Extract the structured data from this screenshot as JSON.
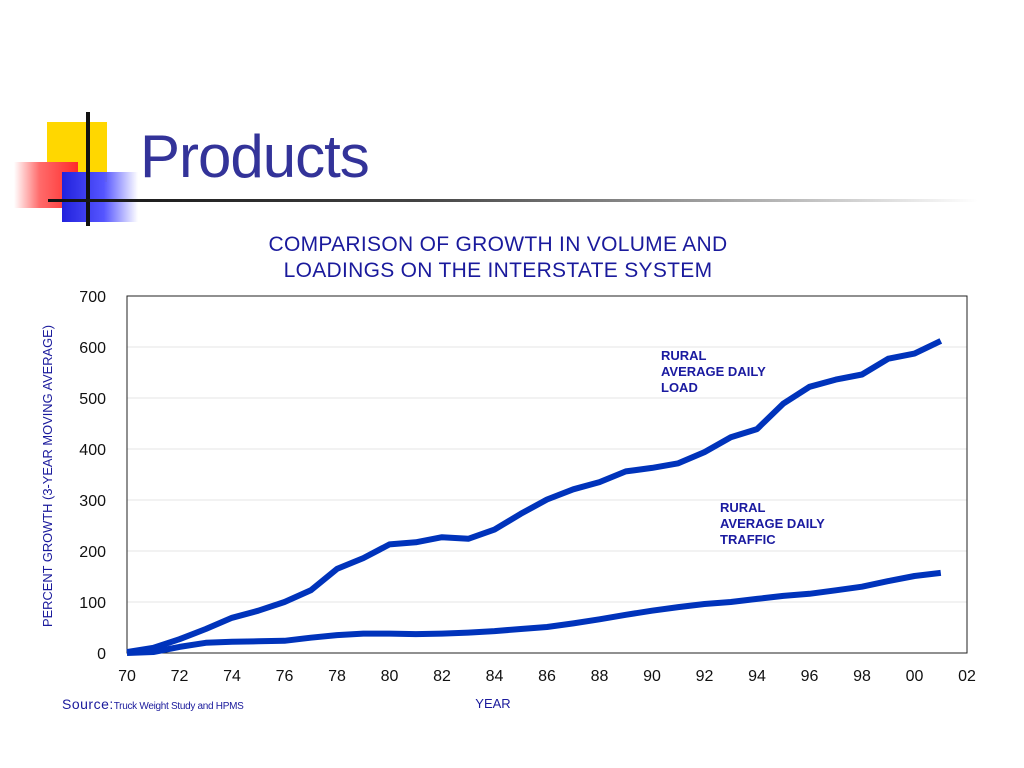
{
  "slide": {
    "title": "Products"
  },
  "source": {
    "label": "Source:",
    "text": "Truck Weight Study and HPMS"
  },
  "colors": {
    "line": "#0033bb",
    "title": "#333399",
    "chart_text": "#1a1a9c"
  },
  "chart_data": {
    "type": "line",
    "title_lines": [
      "COMPARISON OF GROWTH IN VOLUME AND",
      "LOADINGS ON THE INTERSTATE SYSTEM"
    ],
    "xlabel": "YEAR",
    "ylabel": "PERCENT GROWTH (3-YEAR MOVING AVERAGE)",
    "xlim": [
      1970,
      2002
    ],
    "ylim": [
      0,
      700
    ],
    "x_ticks": [
      1970,
      1972,
      1974,
      1976,
      1978,
      1980,
      1982,
      1984,
      1986,
      1988,
      1990,
      1992,
      1994,
      1996,
      1998,
      2000,
      2002
    ],
    "x_tick_labels": [
      "70",
      "72",
      "74",
      "76",
      "78",
      "80",
      "82",
      "84",
      "86",
      "88",
      "90",
      "92",
      "94",
      "96",
      "98",
      "00",
      "02"
    ],
    "y_ticks": [
      0,
      100,
      200,
      300,
      400,
      500,
      600,
      700
    ],
    "y_tick_labels": [
      "0",
      "100",
      "200",
      "300",
      "400",
      "500",
      "600",
      "700"
    ],
    "grid": "horizontal",
    "x": [
      1970,
      1971,
      1972,
      1973,
      1974,
      1975,
      1976,
      1977,
      1978,
      1979,
      1980,
      1981,
      1982,
      1983,
      1984,
      1985,
      1986,
      1987,
      1988,
      1989,
      1990,
      1991,
      1992,
      1993,
      1994,
      1995,
      1996,
      1997,
      1998,
      1999,
      2000,
      2001
    ],
    "series": [
      {
        "name_lines": [
          "RURAL",
          "AVERAGE DAILY",
          "LOAD"
        ],
        "values": [
          2,
          10,
          27,
          47,
          69,
          83,
          100,
          123,
          165,
          186,
          213,
          217,
          227,
          224,
          242,
          273,
          301,
          321,
          335,
          356,
          363,
          372,
          394,
          423,
          439,
          489,
          522,
          536,
          546,
          577,
          587,
          612
        ]
      },
      {
        "name_lines": [
          "RURAL",
          "AVERAGE DAILY",
          "TRAFFIC"
        ],
        "values": [
          0,
          2,
          12,
          20,
          22,
          23,
          24,
          30,
          35,
          38,
          38,
          37,
          38,
          40,
          43,
          47,
          51,
          58,
          66,
          75,
          83,
          90,
          96,
          100,
          106,
          112,
          116,
          123,
          130,
          141,
          151,
          157
        ]
      }
    ]
  }
}
